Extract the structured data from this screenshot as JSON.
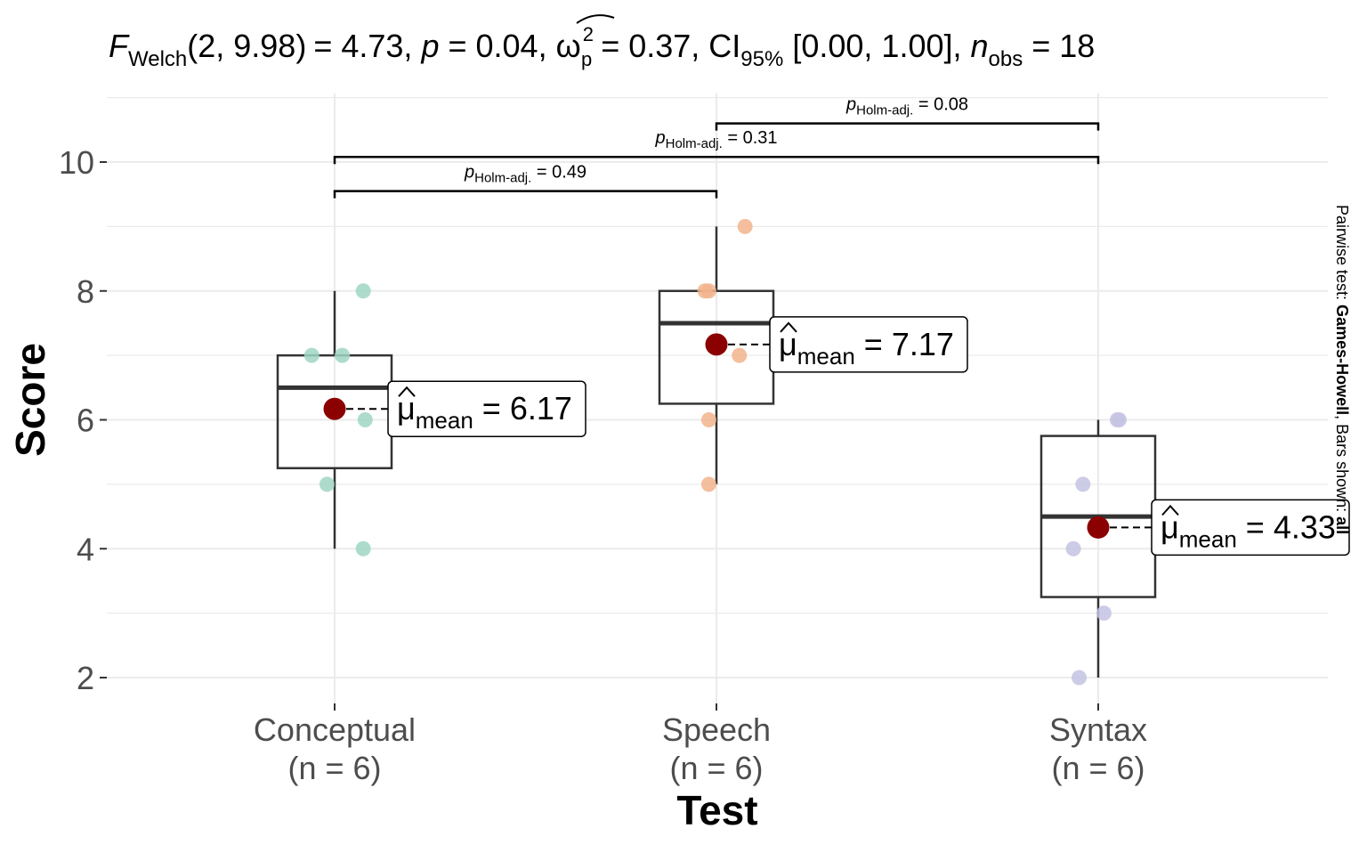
{
  "chart_data": {
    "type": "box",
    "title": {
      "f_symbol": "F",
      "f_sub": "Welch",
      "df": "(2, 9.98)",
      "f_value": "= 4.73, ",
      "p_symbol": "p",
      "p_value": " = 0.04, ",
      "omega_symbol": "ω",
      "omega_sup": "2",
      "omega_sub": "p",
      "omega_value": " = 0.37, CI",
      "ci_sub": "95%",
      "ci_value": " [0.00, 1.00], ",
      "n_symbol": "n",
      "n_sub": "obs",
      "n_value": " = 18"
    },
    "xlabel": "Test",
    "ylabel": "Score",
    "ylim": [
      1.6,
      11.0
    ],
    "yticks": [
      2,
      4,
      6,
      8,
      10
    ],
    "ytick_labels": [
      "2",
      "4",
      "6",
      "8",
      "10"
    ],
    "categories": [
      "Conceptual",
      "Speech",
      "Syntax"
    ],
    "category_n_labels": [
      "(n = 6)",
      "(n = 6)",
      "(n = 6)"
    ],
    "colors": {
      "Conceptual": "#9fd6c4",
      "Speech": "#f2b48c",
      "Syntax": "#c4c3e3",
      "mean": "#8b0000",
      "box": "#333333",
      "grid": "#ebebeb"
    },
    "boxes": [
      {
        "category": "Conceptual",
        "whisker_low": 4,
        "q1": 5.25,
        "median": 6.5,
        "q3": 7.0,
        "whisker_high": 8
      },
      {
        "category": "Speech",
        "whisker_low": 5,
        "q1": 6.25,
        "median": 7.5,
        "q3": 8.0,
        "whisker_high": 9
      },
      {
        "category": "Syntax",
        "whisker_low": 2,
        "q1": 3.25,
        "median": 4.5,
        "q3": 5.75,
        "whisker_high": 6
      }
    ],
    "points": [
      {
        "category": "Conceptual",
        "values": [
          8,
          7,
          7,
          6,
          5,
          4
        ],
        "jitter": [
          0.075,
          -0.06,
          0.02,
          0.08,
          -0.02,
          0.075
        ]
      },
      {
        "category": "Speech",
        "values": [
          9,
          8,
          8,
          7,
          6,
          5
        ],
        "jitter": [
          0.075,
          -0.03,
          -0.02,
          0.06,
          -0.02,
          -0.02
        ]
      },
      {
        "category": "Syntax",
        "values": [
          6,
          6,
          5,
          4,
          3,
          2
        ],
        "jitter": [
          0.05,
          0.055,
          -0.04,
          -0.065,
          0.015,
          -0.05
        ]
      }
    ],
    "means": [
      {
        "category": "Conceptual",
        "value": 6.17,
        "label_prefix": "μ",
        "label_sub": "mean",
        "label_value": " = 6.17"
      },
      {
        "category": "Speech",
        "value": 7.17,
        "label_prefix": "μ",
        "label_sub": "mean",
        "label_value": " = 7.17"
      },
      {
        "category": "Syntax",
        "value": 4.33,
        "label_prefix": "μ",
        "label_sub": "mean",
        "label_value": " = 4.33"
      }
    ],
    "pairwise": [
      {
        "from": "Conceptual",
        "to": "Speech",
        "y": 9.55,
        "p_symbol": "p",
        "p_sub": "Holm-adj.",
        "p_value": " = 0.49"
      },
      {
        "from": "Conceptual",
        "to": "Syntax",
        "y": 10.08,
        "p_symbol": "p",
        "p_sub": "Holm-adj.",
        "p_value": " = 0.31"
      },
      {
        "from": "Speech",
        "to": "Syntax",
        "y": 10.6,
        "p_symbol": "p",
        "p_sub": "Holm-adj.",
        "p_value": " = 0.08"
      }
    ],
    "caption": {
      "prefix": "Pairwise test: ",
      "test": "Games-Howell",
      "middle": ", Bars shown: ",
      "bars": "all"
    }
  }
}
